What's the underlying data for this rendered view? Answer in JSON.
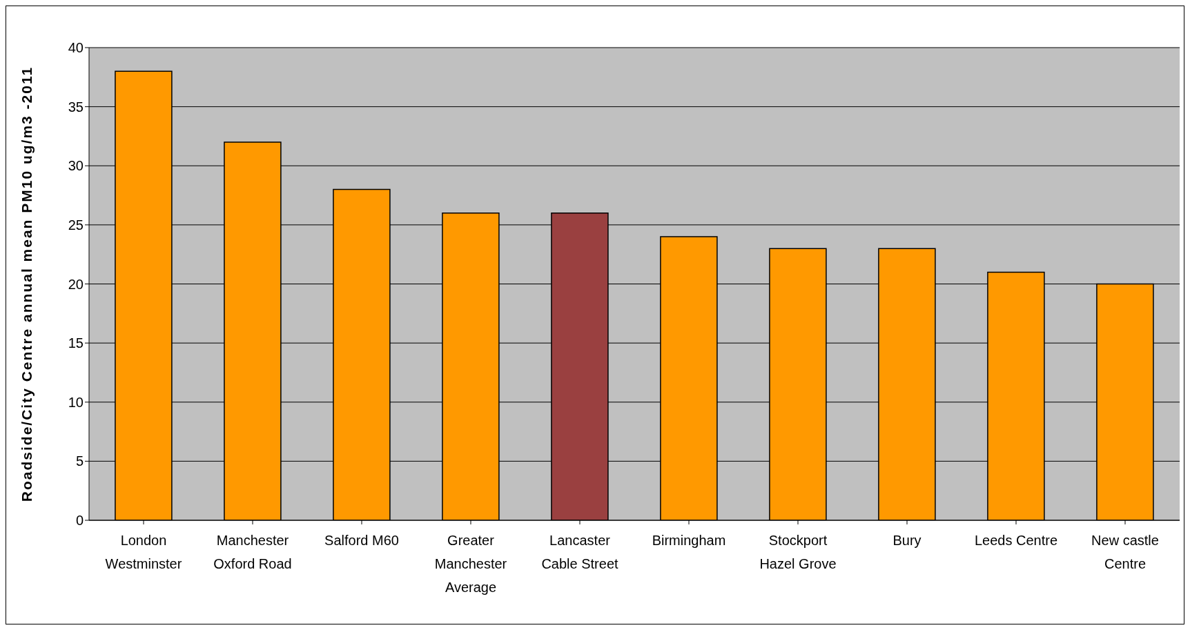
{
  "chart_data": {
    "type": "bar",
    "ylabel": "Roadside/City Centre annual mean PM10 ug/m3 -2011",
    "categories": [
      "London Westminster",
      "Manchester Oxford Road",
      "Salford M60",
      "Greater Manchester Average",
      "Lancaster Cable Street",
      "Birmingham",
      "Stockport Hazel Grove",
      "Bury",
      "Leeds Centre",
      "New castle Centre"
    ],
    "values": [
      38,
      32,
      28,
      26,
      26,
      24,
      23,
      23,
      21,
      20
    ],
    "colors": [
      "#ff9900",
      "#ff9900",
      "#ff9900",
      "#ff9900",
      "#9a4040",
      "#ff9900",
      "#ff9900",
      "#ff9900",
      "#ff9900",
      "#ff9900"
    ],
    "ylim": [
      0,
      40
    ],
    "yticks": [
      0,
      5,
      10,
      15,
      20,
      25,
      30,
      35,
      40
    ],
    "grid": "y"
  }
}
